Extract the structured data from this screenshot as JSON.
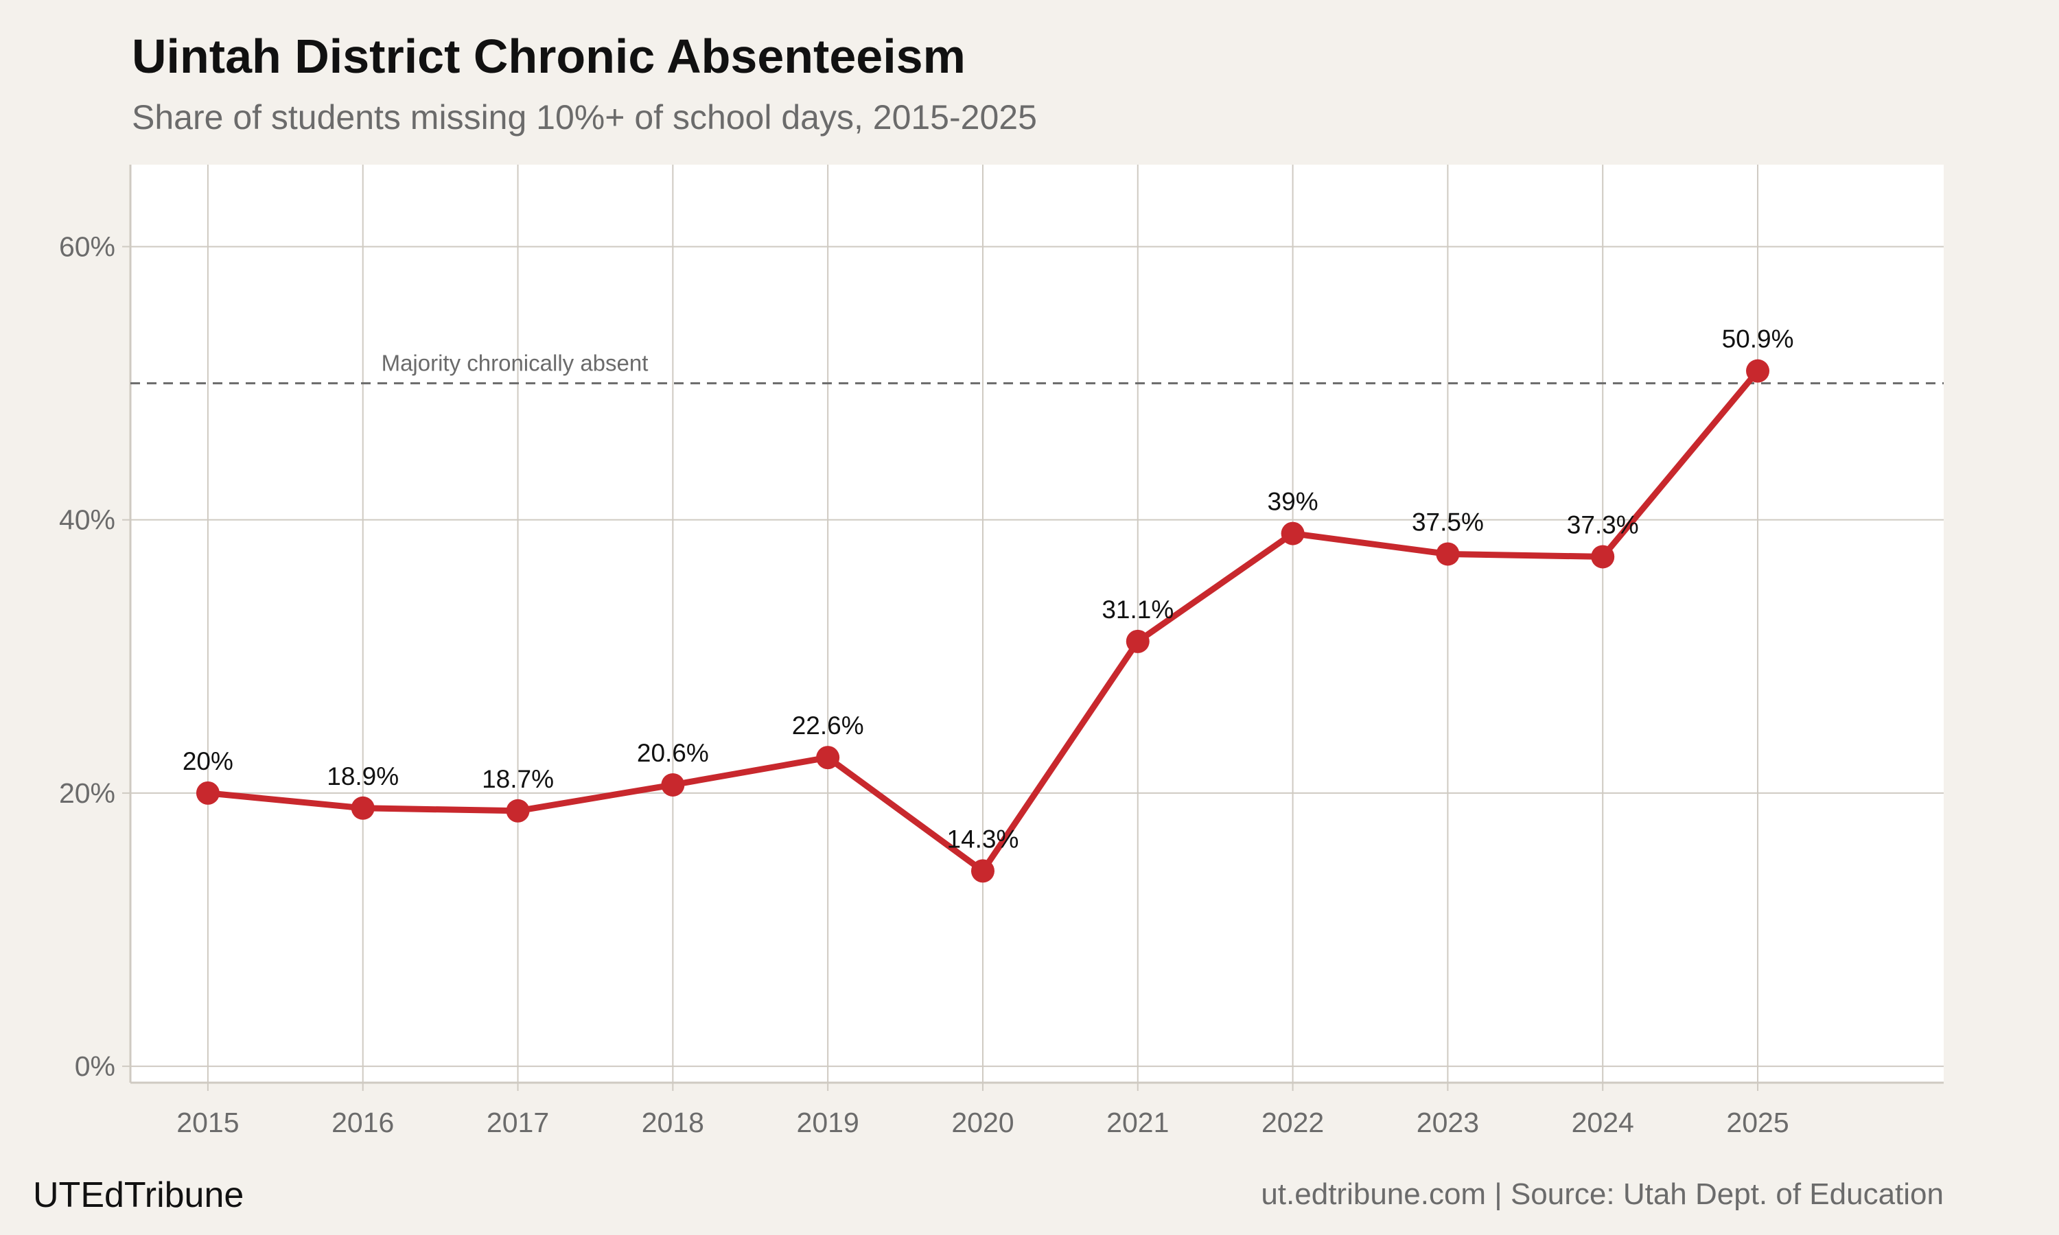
{
  "header": {
    "title": "Uintah District Chronic Absenteeism",
    "subtitle": "Share of students missing 10%+ of school days, 2015-2025"
  },
  "footer": {
    "brand": "UTEdTribune",
    "source": "ut.edtribune.com | Source: Utah Dept. of Education"
  },
  "colors": {
    "line": "#c8282d",
    "grid": "#cfcac2",
    "panel": "#ffffff",
    "background": "#f4f1ec",
    "reference_line": "#6b6b6b"
  },
  "chart_data": {
    "type": "line",
    "x": [
      2015,
      2016,
      2017,
      2018,
      2019,
      2020,
      2021,
      2022,
      2023,
      2024,
      2025
    ],
    "series": [
      {
        "values": [
          20.0,
          18.9,
          18.7,
          20.6,
          22.6,
          14.3,
          31.1,
          39.0,
          37.5,
          37.3,
          50.9
        ],
        "labels": [
          "20%",
          "18.9%",
          "18.7%",
          "20.6%",
          "22.6%",
          "14.3%",
          "31.1%",
          "39%",
          "37.5%",
          "37.3%",
          "50.9%"
        ]
      }
    ],
    "xlim": [
      2014.5,
      2026.2
    ],
    "ylim": [
      -1.2,
      66
    ],
    "x_ticks": [
      2015,
      2016,
      2017,
      2018,
      2019,
      2020,
      2021,
      2022,
      2023,
      2024,
      2025
    ],
    "y_ticks": [
      0,
      20,
      40,
      60
    ],
    "y_tick_labels": [
      "0%",
      "20%",
      "40%",
      "60%"
    ],
    "reference_line": {
      "y": 50,
      "label": "Majority chronically absent",
      "label_x": 2016.98,
      "style": "dashed"
    },
    "grid": true,
    "legend": "none"
  }
}
